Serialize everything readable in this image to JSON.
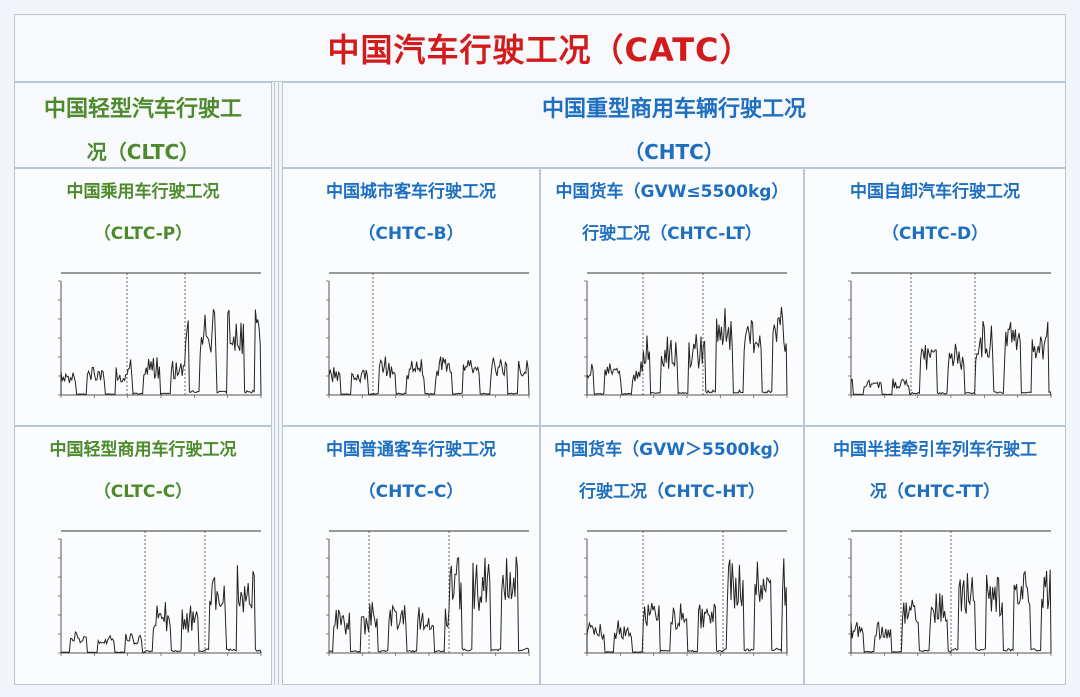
{
  "header": {
    "title": "中国汽车行驶工况（CATC）"
  },
  "groups": {
    "light": {
      "title_line1": "中国轻型汽车行驶工",
      "title_line2": "况（CLTC）"
    },
    "heavy": {
      "title_line1": "中国重型商用车辆行驶工况",
      "title_line2": "（CHTC）"
    }
  },
  "cells": [
    {
      "id": "cltc-p",
      "line1": "中国乘用车行驶工况",
      "line2": "（CLTC-P）",
      "color": "green"
    },
    {
      "id": "chtc-b",
      "line1": "中国城市客车行驶工况",
      "line2": "（CHTC-B）",
      "color": "blue"
    },
    {
      "id": "chtc-lt",
      "line1": "中国货车（GVW≤5500kg）",
      "line2": "行驶工况（CHTC-LT）",
      "color": "blue"
    },
    {
      "id": "chtc-d",
      "line1": "中国自卸汽车行驶工况",
      "line2": "（CHTC-D）",
      "color": "blue"
    },
    {
      "id": "cltc-c",
      "line1": "中国轻型商用车行驶工况",
      "line2": "（CLTC-C）",
      "color": "green"
    },
    {
      "id": "chtc-c",
      "line1": "中国普通客车行驶工况",
      "line2": "（CHTC-C）",
      "color": "blue"
    },
    {
      "id": "chtc-ht",
      "line1": "中国货车（GVW＞5500kg）",
      "line2": "行驶工况（CHTC-HT）",
      "color": "blue"
    },
    {
      "id": "chtc-tt",
      "line1": "中国半挂牵引车列车行驶工",
      "line2": "况（CHTC-TT）",
      "color": "blue"
    }
  ],
  "colors": {
    "title_red": "#d21c1c",
    "green": "#4c8a2b",
    "blue": "#1e6fbf",
    "border": "#b7c7d6"
  }
}
